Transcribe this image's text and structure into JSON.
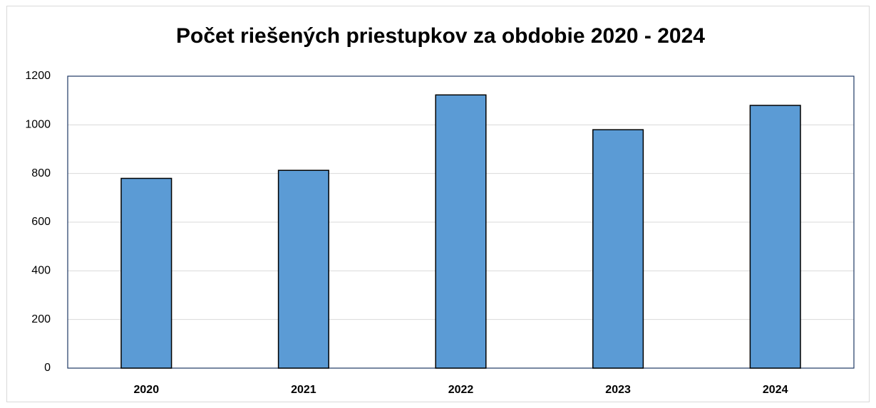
{
  "chart_data": {
    "type": "bar",
    "title": "Počet riešených priestupkov za obdobie 2020 - 2024",
    "categories": [
      "2020",
      "2021",
      "2022",
      "2023",
      "2024"
    ],
    "values": [
      780,
      813,
      1123,
      980,
      1080
    ],
    "color": "#5b9bd5",
    "ylim": [
      0,
      1200
    ],
    "yticks": [
      0,
      200,
      400,
      600,
      800,
      1000,
      1200
    ],
    "grid": true
  }
}
